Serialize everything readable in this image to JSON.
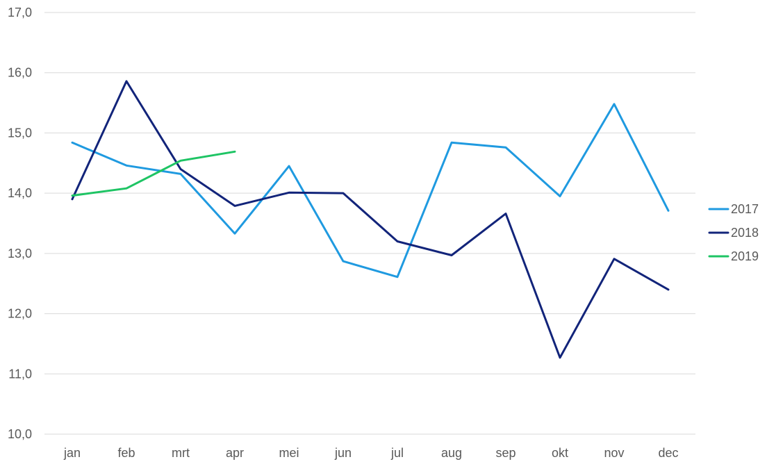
{
  "chart_data": {
    "type": "line",
    "title": "",
    "xlabel": "",
    "ylabel": "",
    "categories": [
      "jan",
      "feb",
      "mrt",
      "apr",
      "mei",
      "jun",
      "jul",
      "aug",
      "sep",
      "okt",
      "nov",
      "dec"
    ],
    "ylim": [
      10,
      17
    ],
    "yticks": [
      10,
      11,
      12,
      13,
      14,
      15,
      16,
      17
    ],
    "ytick_labels": [
      "10,0",
      "11,0",
      "12,0",
      "13,0",
      "14,0",
      "15,0",
      "16,0",
      "17,0"
    ],
    "grid": "horizontal",
    "legend_position": "right",
    "series": [
      {
        "name": "2017",
        "color": "#1f9ae0",
        "values": [
          14.84,
          14.46,
          14.32,
          13.33,
          14.45,
          12.87,
          12.61,
          14.84,
          14.76,
          13.95,
          15.48,
          13.71
        ]
      },
      {
        "name": "2018",
        "color": "#12247a",
        "values": [
          13.9,
          15.86,
          14.4,
          13.79,
          14.01,
          14.0,
          13.2,
          12.97,
          13.66,
          11.27,
          12.91,
          12.4
        ]
      },
      {
        "name": "2019",
        "color": "#1ec464",
        "values": [
          13.96,
          14.08,
          14.54,
          14.69,
          null,
          null,
          null,
          null,
          null,
          null,
          null,
          null
        ]
      }
    ]
  }
}
